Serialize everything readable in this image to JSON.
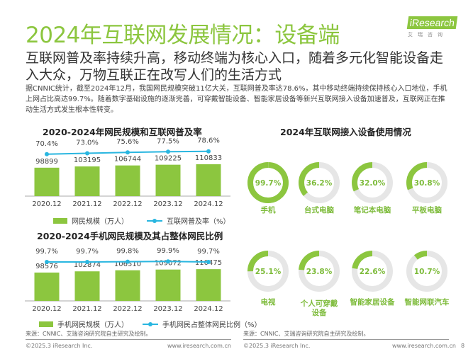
{
  "title": "2024年互联网发展情况：设备端",
  "logo": {
    "brand": "iResearch",
    "cn": "艾瑞咨询"
  },
  "subtitle": "互联网普及率持续升高，移动终端为核心入口，随着多元化智能设备走入大众，万物互联正在改写人们的生活方式",
  "body": "据CNNIC统计，截至2024年12月，我国网民规模突破11亿大关，互联网普及率达78.6%，其中移动终端持续保持核心入口地位，手机上网占比高达99.7%。随着数字基础设施的逐渐完善，可穿戴智能设备、智能家居设备等新兴互联网接入设备加速普及，互联网正在推动生活方式发生根本性转变。",
  "colors": {
    "accent": "#8cc63f",
    "line": "#29b6e0",
    "track": "#e6e6e6"
  },
  "chart_data": [
    {
      "type": "bar",
      "title": "2020-2024年网民规模和互联网普及率",
      "categories": [
        "2020.12",
        "2021.12",
        "2022.12",
        "2023.12",
        "2024.12"
      ],
      "series": [
        {
          "name": "网民规模（万人）",
          "type": "bar",
          "values": [
            98899,
            103195,
            106744,
            109225,
            110833
          ],
          "labels": [
            "98899",
            "103195",
            "106744",
            "109225",
            "110833"
          ]
        },
        {
          "name": "互联网普及率（%）",
          "type": "line",
          "values": [
            70.4,
            73.0,
            75.6,
            77.5,
            78.6
          ],
          "labels": [
            "70.4%",
            "73.0%",
            "75.6%",
            "77.5%",
            "78.6%"
          ]
        }
      ],
      "legend": "bottom"
    },
    {
      "type": "bar",
      "title": "2020-2024手机网民规模及其占整体网民比例",
      "categories": [
        "2020.12",
        "2021.12",
        "2022.12",
        "2023.12",
        "2024.12"
      ],
      "series": [
        {
          "name": "手机网民规模（万人）",
          "type": "bar",
          "values": [
            98576,
            102874,
            106510,
            109072,
            110475
          ],
          "labels": [
            "98576",
            "102874",
            "106510",
            "109072",
            "110475"
          ]
        },
        {
          "name": "手机网民占整体网民比例（%）",
          "type": "line",
          "values": [
            99.7,
            99.7,
            99.8,
            99.9,
            99.7
          ],
          "labels": [
            "99.7%",
            "99.7%",
            "99.8%",
            "99.9%",
            "99.7%"
          ]
        }
      ],
      "legend": "bottom"
    },
    {
      "type": "pie",
      "title": "2024年互联网接入设备使用情况",
      "items": [
        {
          "label": "手机",
          "value": 99.7,
          "text": "99.7%"
        },
        {
          "label": "台式电脑",
          "value": 36.2,
          "text": "36.2%"
        },
        {
          "label": "笔记本电脑",
          "value": 32.0,
          "text": "32.0%"
        },
        {
          "label": "平板电脑",
          "value": 30.8,
          "text": "30.8%"
        },
        {
          "label": "电视",
          "value": 25.1,
          "text": "25.1%"
        },
        {
          "label": "个人可穿戴设备",
          "value": 23.8,
          "text": "23.8%"
        },
        {
          "label": "智能家居设备",
          "value": 22.6,
          "text": "22.6%"
        },
        {
          "label": "智能网联汽车",
          "value": 10.7,
          "text": "10.7%"
        }
      ]
    }
  ],
  "source": "来源：CNNIC、艾瑞咨询研究院自主研究及绘制。",
  "footer": {
    "copyright": "©2025.3 iResearch Inc.",
    "url": "www.iresearch.com.cn",
    "page": "8"
  }
}
